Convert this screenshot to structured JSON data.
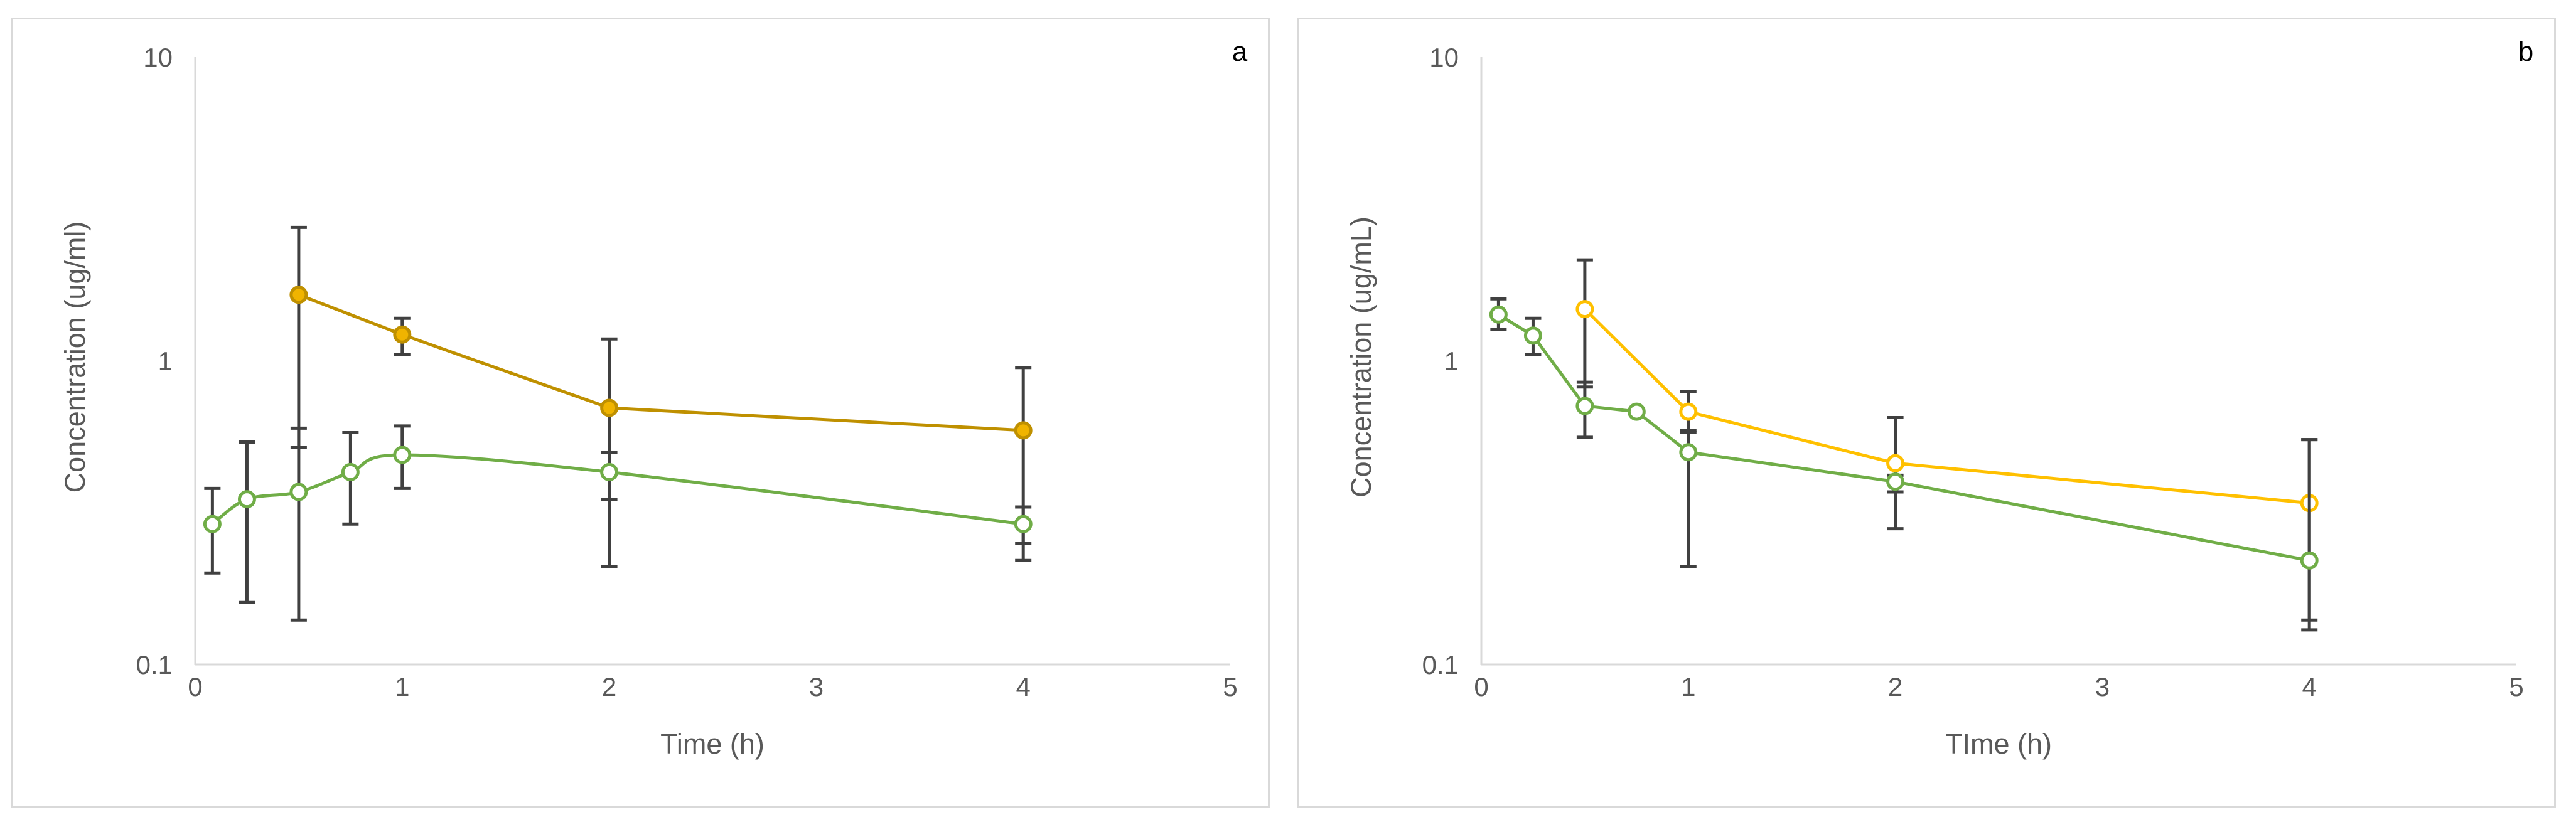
{
  "chart_data": [
    {
      "type": "line",
      "panel_label": "a",
      "xlabel": "Time (h)",
      "ylabel": "Concentration (ug/ml)",
      "xlim": [
        0,
        5
      ],
      "ylim": [
        0.1,
        10
      ],
      "yscale": "log",
      "xticks": [
        "0",
        "1",
        "2",
        "3",
        "4",
        "5"
      ],
      "yticks": [
        "0.1",
        "1",
        "10"
      ],
      "grid": false,
      "legend": "none",
      "series": [
        {
          "color": "#bf9000",
          "fill": "#f0b400",
          "marker": "filled-circle",
          "smooth": false,
          "x": [
            0.5,
            1,
            2,
            4
          ],
          "y": [
            1.65,
            1.22,
            0.7,
            0.59
          ],
          "err_low": [
            0.52,
            1.05,
            0.35,
            0.25
          ],
          "err_high": [
            2.75,
            1.38,
            1.18,
            0.95
          ]
        },
        {
          "color": "#70ad47",
          "fill": "#ffffff",
          "marker": "open-circle",
          "smooth": true,
          "x": [
            0.083,
            0.25,
            0.5,
            0.75,
            1,
            2,
            4
          ],
          "y": [
            0.29,
            0.35,
            0.37,
            0.43,
            0.49,
            0.43,
            0.29
          ],
          "err_low": [
            0.2,
            0.16,
            0.14,
            0.29,
            0.38,
            0.21,
            0.22
          ],
          "err_high": [
            0.38,
            0.54,
            0.6,
            0.58,
            0.61,
            0.5,
            0.33
          ]
        }
      ]
    },
    {
      "type": "line",
      "panel_label": "b",
      "xlabel": "TIme (h)",
      "ylabel": "Concentration (ug/mL)",
      "xlim": [
        0,
        5
      ],
      "ylim": [
        0.1,
        10
      ],
      "yscale": "log",
      "xticks": [
        "0",
        "1",
        "2",
        "3",
        "4",
        "5"
      ],
      "yticks": [
        "0.1",
        "1",
        "10"
      ],
      "grid": false,
      "legend": "none",
      "series": [
        {
          "color": "#ffc000",
          "fill": "#ffffff",
          "marker": "open-circle",
          "smooth": false,
          "x": [
            0.5,
            1,
            2,
            4
          ],
          "y": [
            1.48,
            0.68,
            0.46,
            0.34
          ],
          "err_low": [
            0.82,
            0.58,
            0.37,
            0.14
          ],
          "err_high": [
            2.15,
            0.79,
            0.65,
            0.55
          ]
        },
        {
          "color": "#70ad47",
          "fill": "#ffffff",
          "marker": "open-circle",
          "smooth": false,
          "x": [
            0.083,
            0.25,
            0.5,
            0.75,
            1,
            2,
            4
          ],
          "y": [
            1.42,
            1.21,
            0.71,
            0.68,
            0.5,
            0.4,
            0.22
          ],
          "err_low": [
            1.27,
            1.05,
            0.56,
            0.68,
            0.21,
            0.28,
            0.13
          ],
          "err_high": [
            1.6,
            1.38,
            0.85,
            0.68,
            0.59,
            0.42,
            0.55
          ]
        }
      ]
    }
  ]
}
